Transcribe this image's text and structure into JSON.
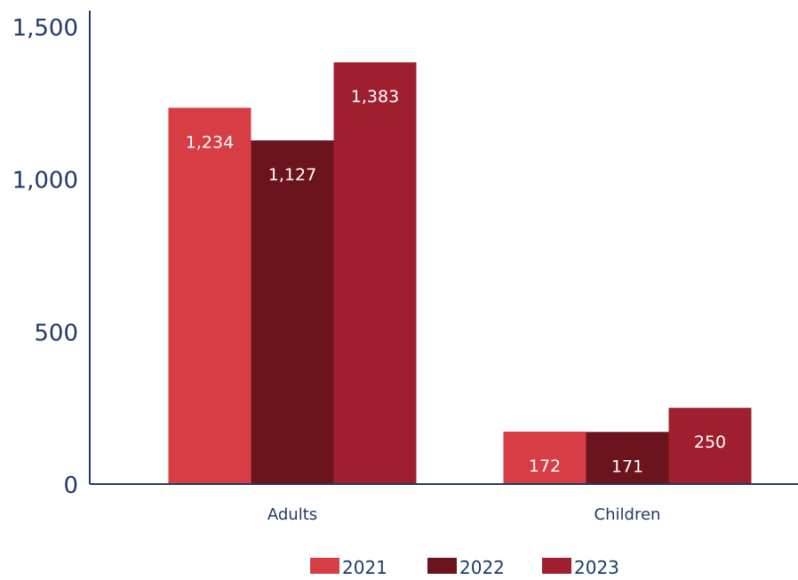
{
  "chart_data": {
    "type": "bar",
    "categories": [
      "Adults",
      "Children"
    ],
    "series": [
      {
        "name": "2021",
        "values": [
          1234,
          172
        ],
        "labels": [
          "1,234",
          "172"
        ]
      },
      {
        "name": "2022",
        "values": [
          1127,
          171
        ],
        "labels": [
          "1,127",
          "171"
        ]
      },
      {
        "name": "2023",
        "values": [
          1383,
          250
        ],
        "labels": [
          "1,383",
          "250"
        ]
      }
    ],
    "title": "",
    "xlabel": "",
    "ylabel": "",
    "ylim": [
      0,
      1500
    ],
    "yticks": [
      0,
      500,
      1000,
      1500
    ],
    "ytick_labels": [
      "0",
      "500",
      "1,000",
      "1,500"
    ],
    "grid": false,
    "legend_position": "bottom"
  },
  "colors": {
    "series": [
      "#d63d45",
      "#6b141e",
      "#a01f2f"
    ],
    "axis": "#1f3b66",
    "data_label": "#ffffff"
  }
}
